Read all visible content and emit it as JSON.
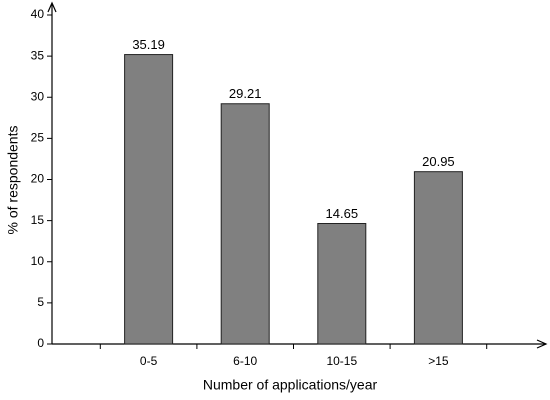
{
  "chart_data": {
    "type": "bar",
    "x_label": "Number of applications/year",
    "y_label": "% of respondents",
    "categories": [
      "0-5",
      "6-10",
      "10-15",
      ">15"
    ],
    "values": [
      35.19,
      29.21,
      14.65,
      20.95
    ],
    "color": "#808080",
    "ylim": [
      0,
      40
    ],
    "yticks": [
      0,
      5,
      10,
      15,
      20,
      25,
      30,
      35,
      40
    ],
    "grid": false
  }
}
